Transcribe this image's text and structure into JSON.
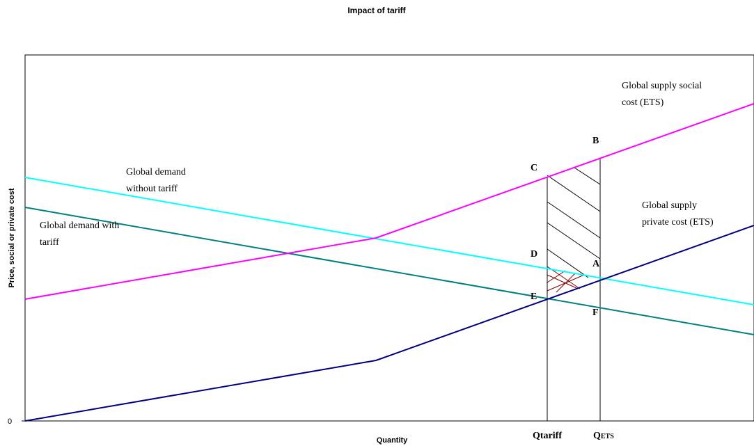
{
  "title": "Impact of tariff",
  "axes": {
    "xlabel": "Quantity",
    "ylabel": "Price, social or private cost",
    "y_origin_tick": "0"
  },
  "curves": {
    "supply_social": {
      "label_line1": "Global supply social",
      "label_line2": "cost (ETS)",
      "color": "#ff00ff"
    },
    "supply_private": {
      "label_line1": "Global supply",
      "label_line2": "private cost (ETS)",
      "color": "#000080"
    },
    "demand_without": {
      "label_line1": "Global demand",
      "label_line2": "without tariff",
      "color": "#00ffff"
    },
    "demand_with": {
      "label_line1": "Global demand with",
      "label_line2": "tariff",
      "color": "#008080"
    }
  },
  "points": {
    "A": "A",
    "B": "B",
    "C": "C",
    "D": "D",
    "E": "E",
    "F": "F"
  },
  "quantities": {
    "q_tariff": "Qtariff",
    "q_ets_main": "Q",
    "q_ets_sub": "ETS"
  },
  "hatch_colors": {
    "black": "#000000",
    "dark_red": "#800000"
  }
}
